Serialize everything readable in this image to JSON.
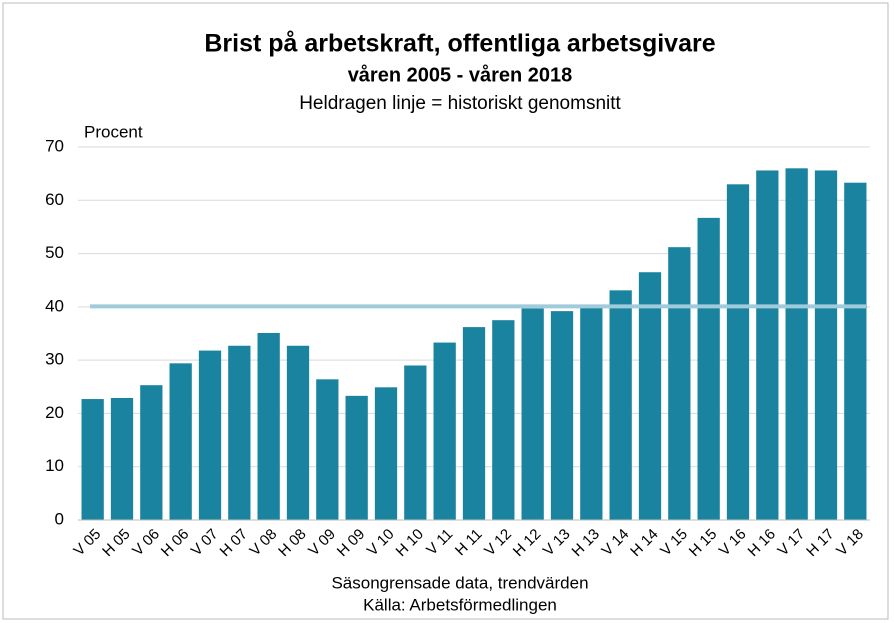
{
  "chart_data": {
    "type": "bar",
    "title": "Brist på arbetskraft, offentliga arbetsgivare",
    "subtitle": "våren 2005 - våren 2018",
    "note": "Heldragen linje = historiskt genomsnitt",
    "y_label": "Procent",
    "x_label": "Säsongrensade data, trendvärden",
    "source": "Källa: Arbetsförmedlingen",
    "categories": [
      "V 05",
      "H 05",
      "V 06",
      "H 06",
      "V 07",
      "H 07",
      "V 08",
      "H 08",
      "V 09",
      "H 09",
      "V 10",
      "H 10",
      "V 11",
      "H 11",
      "V 12",
      "H 12",
      "V 13",
      "H 13",
      "V 14",
      "H 14",
      "V 15",
      "H 15",
      "V 16",
      "H 16",
      "V 17",
      "H 17",
      "V 18"
    ],
    "values": [
      22.7,
      22.9,
      25.3,
      29.4,
      31.8,
      32.7,
      35.1,
      32.7,
      26.4,
      23.3,
      24.9,
      29.0,
      33.3,
      36.2,
      37.5,
      39.7,
      39.2,
      40.0,
      43.1,
      46.5,
      51.2,
      56.7,
      63.0,
      65.6,
      66.0,
      65.6,
      63.3
    ],
    "color": "#1a84a0",
    "average": 40.1,
    "average_color": "#9fcbdb",
    "ylim": [
      0,
      70
    ],
    "yticks": [
      0,
      10,
      20,
      30,
      40,
      50,
      60,
      70
    ],
    "grid": true
  }
}
